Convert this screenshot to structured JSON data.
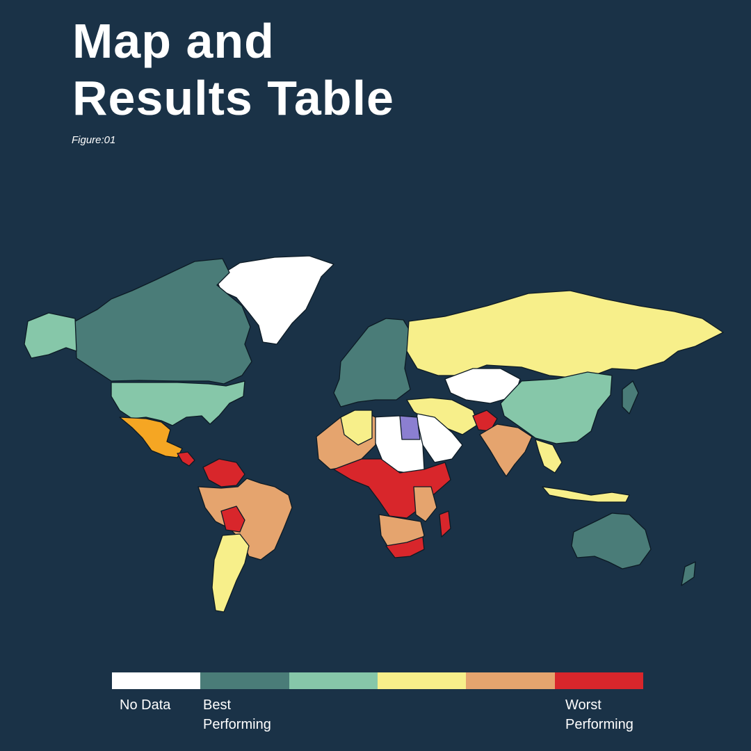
{
  "header": {
    "title_line1": "Map and",
    "title_line2": "Results Table",
    "figure": "Figure:01"
  },
  "legend": {
    "swatches": [
      {
        "color": "#ffffff"
      },
      {
        "color": "#4a7c78"
      },
      {
        "color": "#86c7a9"
      },
      {
        "color": "#f7ef8a"
      },
      {
        "color": "#e5a46e"
      },
      {
        "color": "#d8262b"
      }
    ],
    "no_data": "No Data",
    "best_line1": "Best",
    "best_line2": "Performing",
    "worst_line1": "Worst",
    "worst_line2": "Performing"
  },
  "map_colors": {
    "no_data": "#ffffff",
    "best": "#4a7c78",
    "good": "#86c7a9",
    "middle": "#f7ef8a",
    "poor": "#e5a46e",
    "worst": "#d8262b",
    "mexico": "#f5a623",
    "egypt": "#8b7fd1",
    "background": "#1a3247"
  }
}
